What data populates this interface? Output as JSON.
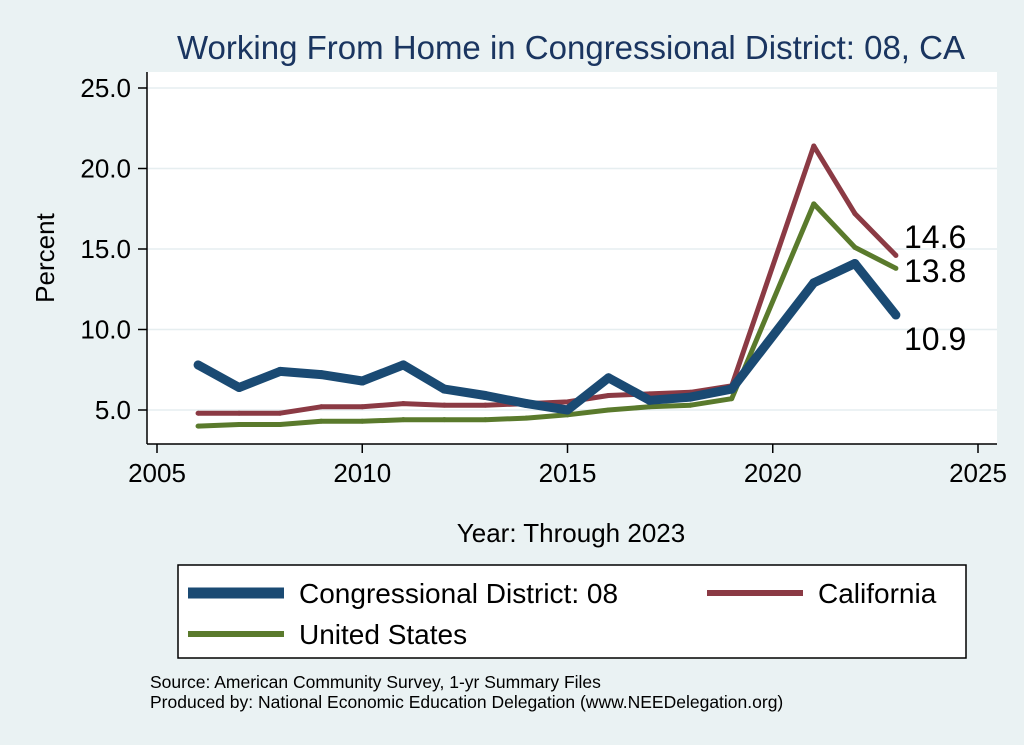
{
  "chart_data": {
    "type": "line",
    "title": "Working From Home in Congressional District: 08, CA",
    "xlabel": "Year: Through 2023",
    "ylabel": "Percent",
    "xlim": [
      2005,
      2025
    ],
    "ylim": [
      3.0,
      26.0
    ],
    "xticks": [
      2005,
      2010,
      2015,
      2020,
      2025
    ],
    "yticks": [
      5.0,
      10.0,
      15.0,
      20.0,
      25.0
    ],
    "grid": true,
    "legend_position": "bottom",
    "x": [
      2006,
      2007,
      2008,
      2009,
      2010,
      2011,
      2012,
      2013,
      2014,
      2015,
      2016,
      2017,
      2018,
      2019,
      2021,
      2022,
      2023
    ],
    "series": [
      {
        "name": "Congressional District: 08",
        "color": "#1a4a73",
        "values": [
          7.8,
          6.4,
          7.4,
          7.2,
          6.8,
          7.8,
          6.3,
          5.9,
          5.4,
          5.0,
          7.0,
          5.6,
          5.8,
          6.3,
          12.9,
          14.1,
          10.9
        ],
        "end_label": "10.9"
      },
      {
        "name": "California",
        "color": "#8b3a44",
        "values": [
          4.8,
          4.8,
          4.8,
          5.2,
          5.2,
          5.4,
          5.3,
          5.3,
          5.4,
          5.5,
          5.9,
          6.0,
          6.1,
          6.5,
          21.4,
          17.2,
          14.6
        ],
        "end_label": "14.6"
      },
      {
        "name": "United States",
        "color": "#5a7a2c",
        "values": [
          4.0,
          4.1,
          4.1,
          4.3,
          4.3,
          4.4,
          4.4,
          4.4,
          4.5,
          4.7,
          5.0,
          5.2,
          5.3,
          5.7,
          17.8,
          15.1,
          13.8
        ],
        "end_label": "13.8"
      }
    ]
  },
  "source": {
    "line1": "Source: American Community Survey, 1-yr Summary Files",
    "line2": "Produced by: National Economic Education Delegation (www.NEEDelegation.org)"
  }
}
